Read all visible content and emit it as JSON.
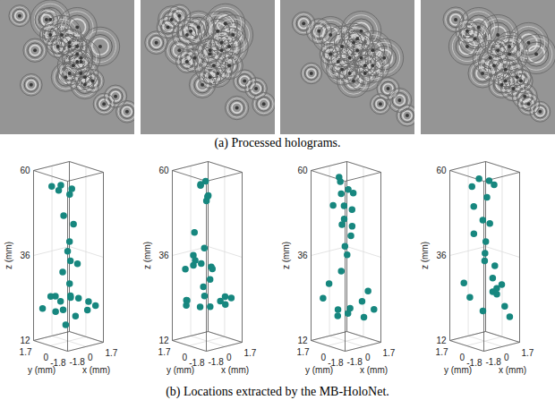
{
  "holograms": {
    "caption": "(a) Processed holograms."
  },
  "caption": "(b) Locations extracted by the MB-HoloNet.",
  "chart_data": [
    {
      "type": "scatter3d",
      "color": "#17877f",
      "marker": "circle",
      "grid": true,
      "xlabel": "x (mm)",
      "ylabel": "y (mm)",
      "zlabel": "z (mm)",
      "xlim": [
        -1.8,
        1.7
      ],
      "ylim": [
        -1.8,
        1.7
      ],
      "zlim": [
        12,
        60
      ],
      "xticks": [
        -1.8,
        0,
        1.7
      ],
      "yticks": [
        -1.8,
        0,
        1.7
      ],
      "zticks": [
        12,
        36,
        60
      ],
      "x": [
        -0.5,
        0.2,
        -0.2,
        0.8,
        0.3,
        0.0,
        0.3,
        0.1,
        0.2,
        -0.1,
        0.4,
        0.0,
        0.2,
        -0.9,
        -0.6,
        0.0,
        0.3,
        0.6,
        -0.3,
        1.2,
        1.5,
        -1.3,
        -0.5,
        0.4,
        0.2,
        0.9,
        -1.0
      ],
      "y": [
        1.2,
        1.0,
        0.8,
        0.5,
        0.2,
        0.5,
        -0.2,
        0.0,
        0.3,
        -0.3,
        -0.5,
        0.6,
        0.1,
        0.4,
        1.2,
        -0.2,
        0.1,
        -0.4,
        0.5,
        -0.8,
        -1.2,
        1.3,
        0.8,
        -0.3,
        0.5,
        -1.0,
        -0.5
      ],
      "z": [
        55,
        55,
        54,
        54,
        53,
        47,
        45,
        40,
        37,
        35,
        34,
        31,
        28,
        25,
        24,
        25,
        24,
        24,
        23,
        23,
        22,
        21,
        20,
        19,
        16,
        21,
        22
      ]
    },
    {
      "type": "scatter3d",
      "color": "#17877f",
      "marker": "circle",
      "grid": true,
      "xlabel": "x (mm)",
      "ylabel": "y (mm)",
      "zlabel": "z (mm)",
      "xlim": [
        -1.8,
        1.7
      ],
      "ylim": [
        -1.8,
        1.7
      ],
      "zlim": [
        12,
        60
      ],
      "xticks": [
        -1.8,
        0,
        1.7
      ],
      "yticks": [
        -1.8,
        0,
        1.7
      ],
      "zticks": [
        12,
        36,
        60
      ],
      "x": [
        0.2,
        0.4,
        0.6,
        0.5,
        0.3,
        0.1,
        -0.3,
        0.0,
        -0.6,
        -0.8,
        -0.5,
        -0.4,
        -1.0,
        0.2,
        0.5,
        -0.2,
        0.0,
        -0.8,
        -1.1,
        -0.6,
        0.3,
        0.0,
        0.9,
        1.2,
        1.4,
        0.7,
        -1.4
      ],
      "y": [
        0.9,
        1.1,
        0.8,
        0.5,
        0.4,
        0.0,
        1.0,
        0.3,
        0.8,
        0.4,
        0.9,
        0.2,
        1.2,
        -0.2,
        0.0,
        -0.5,
        0.4,
        1.3,
        1.0,
        0.1,
        0.6,
        -0.3,
        -0.4,
        -0.6,
        -1.0,
        -1.1,
        0.6
      ],
      "z": [
        55,
        55,
        56,
        52,
        51,
        53,
        42,
        38,
        36,
        35,
        33,
        34,
        32,
        33,
        32,
        30,
        27,
        23,
        22,
        22,
        24,
        22,
        23,
        22,
        24,
        25,
        24
      ]
    },
    {
      "type": "scatter3d",
      "color": "#17877f",
      "marker": "circle",
      "grid": true,
      "xlabel": "x (mm)",
      "ylabel": "y (mm)",
      "zlabel": "z (mm)",
      "xlim": [
        -1.8,
        1.7
      ],
      "ylim": [
        -1.8,
        1.7
      ],
      "zlim": [
        12,
        60
      ],
      "xticks": [
        -1.8,
        0,
        1.7
      ],
      "yticks": [
        -1.8,
        0,
        1.7
      ],
      "zticks": [
        12,
        36,
        60
      ],
      "x": [
        -0.2,
        0.3,
        0.1,
        0.6,
        0.9,
        -0.5,
        0.0,
        0.4,
        0.2,
        -0.3,
        0.6,
        0.1,
        -0.2,
        0.3,
        -0.8,
        -1.2,
        -0.5,
        0.0,
        0.4,
        1.0,
        1.3,
        1.5,
        0.8,
        -1.0,
        0.2
      ],
      "y": [
        0.5,
        0.9,
        0.6,
        0.4,
        0.2,
        0.8,
        0.2,
        -0.2,
        0.4,
        0.1,
        0.0,
        -0.4,
        -0.1,
        0.2,
        0.9,
        1.1,
        0.3,
        -0.2,
        0.0,
        -0.6,
        -0.9,
        -1.3,
        -1.0,
        -0.2,
        0.7
      ],
      "z": [
        58,
        56,
        53,
        54,
        53,
        50,
        50,
        49,
        46,
        45,
        44,
        42,
        39,
        36,
        28,
        24,
        21,
        20,
        21,
        23,
        26,
        21,
        19,
        20,
        31
      ]
    },
    {
      "type": "scatter3d",
      "color": "#17877f",
      "marker": "circle",
      "grid": true,
      "xlabel": "x (mm)",
      "ylabel": "y (mm)",
      "zlabel": "z (mm)",
      "xlim": [
        -1.8,
        1.7
      ],
      "ylim": [
        -1.8,
        1.7
      ],
      "zlim": [
        12,
        60
      ],
      "xticks": [
        -1.8,
        0,
        1.7
      ],
      "yticks": [
        -1.8,
        0,
        1.7
      ],
      "zticks": [
        12,
        36,
        60
      ],
      "x": [
        -0.3,
        0.2,
        1.0,
        1.2,
        0.5,
        -0.6,
        0.0,
        0.4,
        -0.4,
        0.1,
        0.5,
        -0.2,
        0.7,
        0.3,
        0.9,
        0.6,
        0.4,
        0.8,
        1.0,
        -0.6,
        -0.9,
        1.3,
        0.2
      ],
      "y": [
        1.0,
        0.8,
        0.6,
        0.3,
        0.3,
        0.5,
        0.2,
        -0.1,
        0.7,
        0.0,
        0.5,
        -0.2,
        -0.3,
        -0.5,
        -0.8,
        -0.6,
        -0.4,
        -0.4,
        -1.0,
        0.9,
        1.2,
        -1.2,
        0.4
      ],
      "z": [
        55,
        57,
        56,
        55,
        52,
        50,
        46,
        45,
        42,
        40,
        36,
        35,
        33,
        30,
        28,
        27,
        26,
        25,
        22,
        24,
        28,
        19,
        20
      ]
    }
  ]
}
